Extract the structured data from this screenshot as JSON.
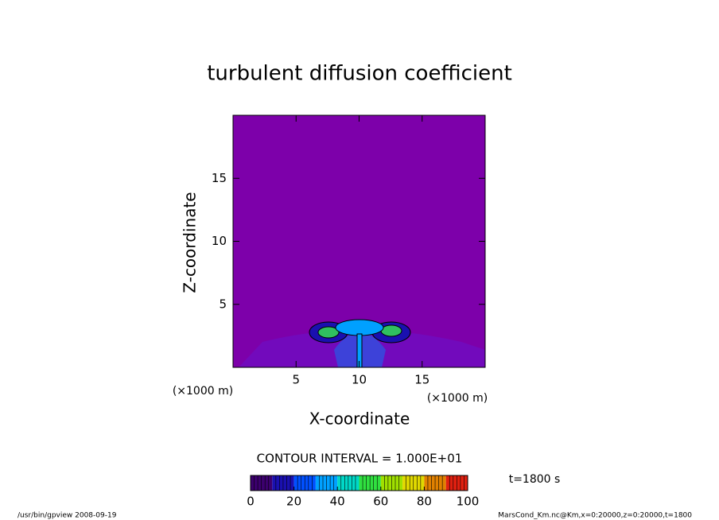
{
  "chart_data": {
    "type": "contour",
    "title": "turbulent diffusion coefficient",
    "x_label": "X-coordinate",
    "y_label": "Z-coordinate",
    "x_unit": "(×1000 m)",
    "y_unit": "(×1000 m)",
    "xlim": [
      0,
      20
    ],
    "ylim": [
      0,
      20
    ],
    "xticks": [
      5,
      10,
      15
    ],
    "yticks": [
      5,
      10,
      15
    ],
    "background_color": "#7d00aa",
    "contour_interval": "CONTOUR INTERVAL = 1.000E+01",
    "time_label": "t=1800 s",
    "colorbar": {
      "lim": [
        0,
        100
      ],
      "ticks": [
        0,
        20,
        40,
        60,
        80,
        100
      ],
      "levels": [
        0,
        10,
        20,
        30,
        40,
        50,
        60,
        70,
        80,
        90,
        100
      ],
      "colors": [
        "#3c006e",
        "#1a10b0",
        "#0050ff",
        "#00a0ff",
        "#00d8c8",
        "#30e040",
        "#a0e000",
        "#e0d800",
        "#e08000",
        "#e02010"
      ]
    },
    "footer_left": "/usr/bin/gpview  2008-09-19",
    "footer_right": "MarsCond_Km.nc@Km,x=0:20000,z=0:20000,t=1800"
  }
}
